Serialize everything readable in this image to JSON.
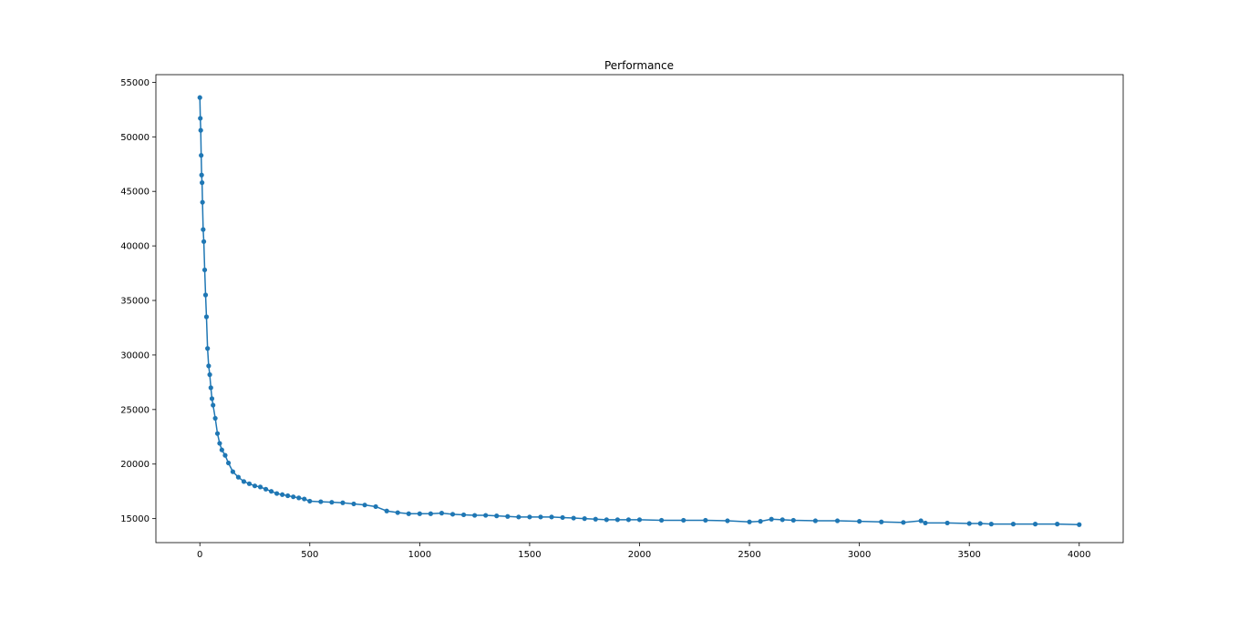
{
  "chart_data": {
    "type": "line",
    "title": "Performance",
    "xlabel": "",
    "ylabel": "",
    "xlim": [
      -200,
      4200
    ],
    "ylim": [
      12800,
      55700
    ],
    "xticks": [
      0,
      500,
      1000,
      1500,
      2000,
      2500,
      3000,
      3500,
      4000
    ],
    "yticks": [
      15000,
      20000,
      25000,
      30000,
      35000,
      40000,
      45000,
      50000,
      55000
    ],
    "x_tick_labels": [
      "0",
      "500",
      "1000",
      "1500",
      "2000",
      "2500",
      "3000",
      "3500",
      "4000"
    ],
    "y_tick_labels": [
      "15000",
      "20000",
      "25000",
      "30000",
      "35000",
      "40000",
      "45000",
      "50000",
      "55000"
    ],
    "grid": false,
    "legend": "none",
    "marker": "circle",
    "color": "#1f77b4",
    "series": [
      {
        "x": [
          0,
          2,
          4,
          6,
          8,
          10,
          12,
          15,
          18,
          22,
          26,
          30,
          35,
          40,
          45,
          50,
          55,
          60,
          70,
          80,
          90,
          100,
          115,
          130,
          150,
          175,
          200,
          225,
          250,
          275,
          300,
          325,
          350,
          375,
          400,
          425,
          450,
          475,
          500,
          550,
          600,
          650,
          700,
          750,
          800,
          850,
          900,
          950,
          1000,
          1050,
          1100,
          1150,
          1200,
          1250,
          1300,
          1350,
          1400,
          1450,
          1500,
          1550,
          1600,
          1650,
          1700,
          1750,
          1800,
          1850,
          1900,
          1950,
          2000,
          2100,
          2200,
          2300,
          2400,
          2500,
          2550,
          2600,
          2650,
          2700,
          2800,
          2900,
          3000,
          3100,
          3200,
          3280,
          3300,
          3400,
          3500,
          3550,
          3600,
          3700,
          3800,
          3900,
          4000
        ],
        "y": [
          53600,
          51700,
          50600,
          48300,
          46500,
          45800,
          44000,
          41500,
          40400,
          37800,
          35500,
          33500,
          30600,
          29000,
          28200,
          27000,
          26000,
          25400,
          24200,
          22800,
          21900,
          21300,
          20800,
          20100,
          19300,
          18800,
          18400,
          18200,
          18000,
          17900,
          17700,
          17500,
          17300,
          17200,
          17100,
          17000,
          16900,
          16800,
          16600,
          16550,
          16500,
          16450,
          16350,
          16250,
          16100,
          15700,
          15550,
          15450,
          15450,
          15450,
          15500,
          15400,
          15350,
          15300,
          15300,
          15250,
          15200,
          15150,
          15150,
          15150,
          15150,
          15100,
          15050,
          15000,
          14950,
          14900,
          14900,
          14900,
          14900,
          14850,
          14850,
          14850,
          14800,
          14700,
          14750,
          14950,
          14900,
          14850,
          14800,
          14800,
          14750,
          14700,
          14650,
          14800,
          14600,
          14600,
          14550,
          14550,
          14500,
          14500,
          14500,
          14500,
          14450
        ]
      }
    ]
  }
}
